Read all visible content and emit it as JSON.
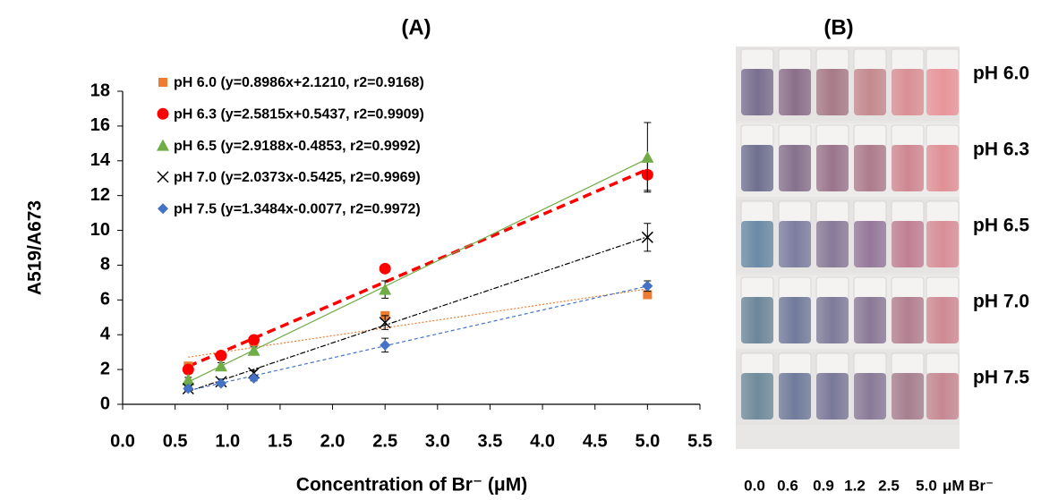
{
  "chart_data": {
    "type": "scatter",
    "title": "(A)",
    "xlabel": "Concentration of Br⁻ (μM)",
    "ylabel": "A519/A673",
    "x": [
      0.625,
      0.9375,
      1.25,
      2.5,
      5.0
    ],
    "xlim": [
      0,
      5.5
    ],
    "xticks": [
      {
        "value": 0,
        "label": "0.0"
      },
      0.5,
      {
        "value": 1,
        "label": "1.0"
      },
      1.5,
      {
        "value": 2,
        "label": "2.0"
      },
      2.5,
      {
        "value": 3,
        "label": "3.0"
      },
      3.5,
      {
        "value": 4,
        "label": "4.0"
      },
      4.5,
      {
        "value": 5,
        "label": "5.0"
      },
      5.5
    ],
    "ylim": [
      0,
      18
    ],
    "yticks": [
      0,
      2,
      4,
      6,
      8,
      10,
      12,
      14,
      16,
      18
    ],
    "grid": false,
    "legend": "upper left",
    "series": [
      {
        "name": "pH 6.0 (y=0.8986x+2.1210, r2=0.9168)",
        "color": "#ed7d31",
        "marker": "square",
        "line_style": "dotted",
        "values": [
          2.2,
          2.8,
          3.6,
          5.1,
          6.3
        ],
        "errors": [
          0.15,
          0.15,
          0.15,
          0.2,
          0.2
        ]
      },
      {
        "name": "pH 6.3 (y=2.5815x+0.5437, r2=0.9909)",
        "color": "#ff0000",
        "marker": "circle",
        "line_style": "dashed-thick",
        "values": [
          2.0,
          2.8,
          3.7,
          7.8,
          13.2
        ],
        "errors": [
          0.2,
          0.2,
          0.2,
          0.2,
          0.9
        ]
      },
      {
        "name": "pH 6.5 (y=2.9188x-0.4853, r2=0.9992)",
        "color": "#70ad47",
        "marker": "triangle",
        "line_style": "solid",
        "values": [
          1.4,
          2.2,
          3.1,
          6.6,
          14.2
        ],
        "errors": [
          0.15,
          0.2,
          0.2,
          0.5,
          2.0
        ]
      },
      {
        "name": "pH 7.0 (y=2.0373x-0.5425, r2=0.9969)",
        "color": "#000000",
        "marker": "x",
        "line_style": "dashdot",
        "values": [
          0.9,
          1.3,
          1.8,
          4.7,
          9.6
        ],
        "errors": [
          0.1,
          0.15,
          0.15,
          0.4,
          0.8
        ]
      },
      {
        "name": "pH 7.5 (y=1.3484x-0.0077, r2=0.9972)",
        "color": "#4472c4",
        "marker": "diamond",
        "line_style": "dashed",
        "values": [
          0.9,
          1.2,
          1.5,
          3.4,
          6.8
        ],
        "errors": [
          0.1,
          0.1,
          0.15,
          0.4,
          0.3
        ]
      }
    ]
  },
  "panel_b": {
    "title": "(B)",
    "rows": [
      {
        "label": "pH 6.0",
        "colors": [
          "#7a6f90",
          "#8c6f8a",
          "#a77a88",
          "#c48a8f",
          "#d99095",
          "#e8959a"
        ]
      },
      {
        "label": "pH 6.3",
        "colors": [
          "#6f7090",
          "#86718c",
          "#9a748c",
          "#ad7b8c",
          "#cf8791",
          "#e08f96"
        ]
      },
      {
        "label": "pH 6.5",
        "colors": [
          "#6a8aa6",
          "#7c7ea0",
          "#887a98",
          "#95789a",
          "#c07f92",
          "#d98e97"
        ]
      },
      {
        "label": "pH 7.0",
        "colors": [
          "#6c8699",
          "#707a9a",
          "#7d7a9a",
          "#8a7896",
          "#b27e8f",
          "#cf8993"
        ]
      },
      {
        "label": "pH 7.5",
        "colors": [
          "#6f8b9b",
          "#6f7b9b",
          "#7a7899",
          "#897a97",
          "#a77f8f",
          "#c68892"
        ]
      }
    ],
    "concentrations": [
      "0.0",
      "0.6",
      "0.9",
      "1.2",
      "2.5",
      "5.0"
    ],
    "unit": "μM Br⁻"
  }
}
